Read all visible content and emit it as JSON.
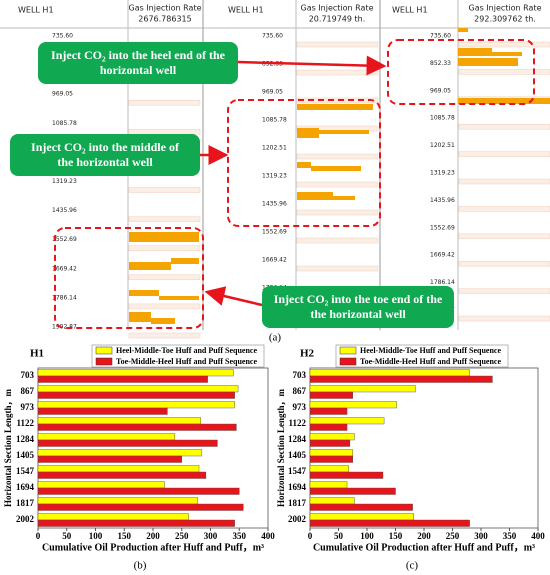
{
  "panel_a": {
    "label": "(a)",
    "columns": [
      {
        "well": "WELL H1",
        "rate_label": "Gas Injection Rate",
        "rate_value": "2676.786315"
      },
      {
        "well": "WELL H1",
        "rate_label": "Gas Injection Rate",
        "rate_value": "20.719749 th."
      },
      {
        "well": "WELL H1",
        "rate_label": "Gas Injection Rate",
        "rate_value": "292.309762 th."
      }
    ],
    "depths": [
      "735.60",
      "852.33",
      "969.05",
      "1085.78",
      "1202.51",
      "1319.23",
      "1435.96",
      "1552.69",
      "1669.42",
      "1786.14",
      "1902.87"
    ],
    "callouts": [
      [
        "Inject CO₂ into the heel end of the",
        "horizontal well"
      ],
      [
        "Inject CO₂ into the middle of",
        "the horizontal well"
      ],
      [
        "Inject CO₂ into the toe end of the",
        "the horizontal well"
      ]
    ]
  },
  "chart_data": [
    {
      "type": "hbar",
      "label": "(b)",
      "title": "H1",
      "x_label": "Cumulative Oil Production after Huff and Puff，m³",
      "y_label": "Horizontal Section Length，m",
      "categories": [
        "703",
        "867",
        "973",
        "1122",
        "1284",
        "1405",
        "1547",
        "1694",
        "1817",
        "2002"
      ],
      "series": [
        {
          "name": "Heel-Middle-Toe Huff and Puff Sequence",
          "color": "#ffff00",
          "values": [
            340,
            348,
            342,
            283,
            238,
            285,
            280,
            220,
            278,
            262
          ]
        },
        {
          "name": "Toe-Middle-Heel Huff and Puff Sequence",
          "color": "#e8141b",
          "values": [
            295,
            342,
            225,
            345,
            312,
            250,
            292,
            350,
            357,
            342
          ]
        }
      ],
      "xlim": [
        0,
        400
      ],
      "xticks": [
        0,
        50,
        100,
        150,
        200,
        250,
        300,
        350,
        400
      ]
    },
    {
      "type": "hbar",
      "label": "(c)",
      "title": "H2",
      "x_label": "Cumulative Oil Production after Huff and Puff，m³",
      "y_label": "Horizontal Section Length，m",
      "categories": [
        "703",
        "867",
        "973",
        "1122",
        "1284",
        "1405",
        "1547",
        "1694",
        "1817",
        "2002"
      ],
      "series": [
        {
          "name": "Heel-Middle-Toe Huff and Puff Sequence",
          "color": "#ffff00",
          "values": [
            280,
            185,
            152,
            130,
            78,
            75,
            68,
            65,
            78,
            182
          ]
        },
        {
          "name": "Toe-Middle-Heel Huff and Puff Sequence",
          "color": "#e8141b",
          "values": [
            320,
            75,
            65,
            65,
            70,
            75,
            128,
            150,
            180,
            280
          ]
        }
      ],
      "xlim": [
        0,
        400
      ],
      "xticks": [
        0,
        50,
        100,
        150,
        200,
        250,
        300,
        350,
        400
      ]
    }
  ]
}
